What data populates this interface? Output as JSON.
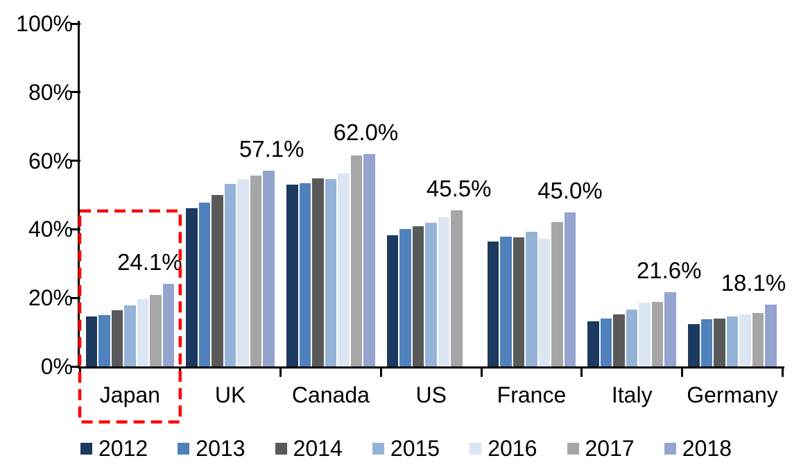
{
  "chart_data": {
    "type": "bar",
    "title": "",
    "categories": [
      "Japan",
      "UK",
      "Canada",
      "US",
      "France",
      "Italy",
      "Germany"
    ],
    "series": [
      {
        "name": "2012",
        "color": "#1C3A60",
        "values": [
          14.6,
          46.2,
          53.1,
          38.2,
          36.5,
          13.2,
          12.4
        ]
      },
      {
        "name": "2013",
        "color": "#4F81BD",
        "values": [
          14.9,
          47.7,
          53.4,
          40.1,
          37.8,
          13.9,
          13.7
        ]
      },
      {
        "name": "2014",
        "color": "#595959",
        "values": [
          16.4,
          49.9,
          54.8,
          40.9,
          37.7,
          15.2,
          13.9
        ]
      },
      {
        "name": "2015",
        "color": "#95B3D7",
        "values": [
          17.8,
          53.2,
          54.6,
          42.0,
          39.3,
          16.6,
          14.5
        ]
      },
      {
        "name": "2016",
        "color": "#DCE6F2",
        "values": [
          19.6,
          54.6,
          56.2,
          43.6,
          37.2,
          18.7,
          15.2
        ]
      },
      {
        "name": "2017",
        "color": "#A6A6A6",
        "values": [
          20.9,
          55.7,
          61.5,
          45.5,
          42.2,
          18.9,
          15.6
        ]
      },
      {
        "name": "2018",
        "color": "#94A4CE",
        "values": [
          24.1,
          57.1,
          62.0,
          null,
          45.0,
          21.6,
          18.1
        ]
      }
    ],
    "ylim": [
      0,
      100
    ],
    "yticks": [
      {
        "value": 100,
        "label": "100%"
      },
      {
        "value": 80,
        "label": "80%"
      },
      {
        "value": 60,
        "label": "60%"
      },
      {
        "value": 40,
        "label": "40%"
      },
      {
        "value": 20,
        "label": "20%"
      },
      {
        "value": 0,
        "label": "0%"
      }
    ],
    "grid": false,
    "legend_position": "bottom",
    "data_labels": [
      {
        "category": "Japan",
        "series": "2018",
        "text": "24.1%",
        "dx": -27
      },
      {
        "category": "UK",
        "series": "2018",
        "text": "57.1%",
        "dx": 4
      },
      {
        "category": "Canada",
        "series": "2018",
        "text": "62.0%",
        "dx": -5
      },
      {
        "category": "US",
        "series": "2017",
        "text": "45.5%",
        "dx": 3
      },
      {
        "category": "France",
        "series": "2018",
        "text": "45.0%",
        "dx": 0
      },
      {
        "category": "Italy",
        "series": "2018",
        "text": "21.6%",
        "dx": -2
      },
      {
        "category": "Germany",
        "series": "2018",
        "text": "18.1%",
        "dx": -25
      }
    ],
    "annotations": [
      {
        "type": "dashed-box",
        "category": "Japan",
        "color": "#FF0000"
      }
    ]
  }
}
